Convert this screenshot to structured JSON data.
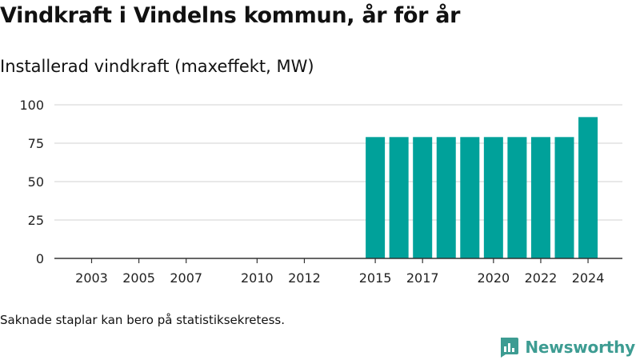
{
  "title": "Vindkraft i Vindelns kommun, år för år",
  "subtitle": "Installerad vindkraft (maxeffekt, MW)",
  "footnote": "Saknade staplar kan bero på statistiksekretess.",
  "brand": {
    "name": "Newsworthy",
    "icon": "newsworthy-logo-icon",
    "color": "#3d9c92"
  },
  "chart_data": {
    "type": "bar",
    "categories": [
      "2003",
      "2004",
      "2005",
      "2006",
      "2007",
      "2008",
      "2009",
      "2010",
      "2011",
      "2012",
      "2013",
      "2014",
      "2015",
      "2016",
      "2017",
      "2018",
      "2019",
      "2020",
      "2021",
      "2022",
      "2023",
      "2024"
    ],
    "values": [
      null,
      null,
      null,
      null,
      null,
      null,
      null,
      null,
      null,
      null,
      null,
      null,
      79,
      79,
      79,
      79,
      79,
      79,
      79,
      79,
      79,
      92
    ],
    "x_tick_labels": [
      "2003",
      "2005",
      "2007",
      "2010",
      "2012",
      "2015",
      "2017",
      "2020",
      "2022",
      "2024"
    ],
    "y_ticks": [
      0,
      25,
      50,
      75,
      100
    ],
    "ylim": [
      0,
      100
    ],
    "grid": true,
    "bar_color": "#00a19a"
  }
}
